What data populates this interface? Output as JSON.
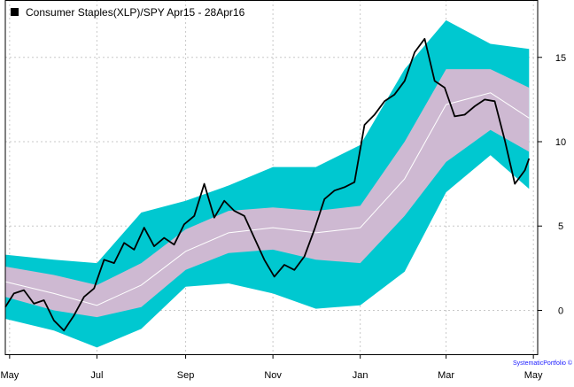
{
  "chart_data": {
    "type": "line",
    "title": "",
    "legend": {
      "label": "Consumer Staples(XLP)/SPY Apr15 - 28Apr16",
      "placement": "top-left",
      "swatch_color": "#000000"
    },
    "x_tick_labels": [
      "May",
      "Jul",
      "Sep",
      "Nov",
      "Jan",
      "Mar",
      "May"
    ],
    "y_ticks": [
      0,
      5,
      10,
      15
    ],
    "y_tick_labels": [
      "0",
      "5",
      "10",
      "15"
    ],
    "ylim": [
      -2.6,
      18.4
    ],
    "x_range": [
      "2015-04-28",
      "2016-05-04"
    ],
    "grid": true,
    "axis_side": "right",
    "colors": {
      "outer_band": "#00c8d0",
      "inner_band": "#ceb9d2",
      "mid_line": "#ffffff",
      "price_line": "#000000",
      "grid": "#c8c8c8"
    },
    "series": [
      {
        "role": "price",
        "x": [
          "2015-04-28",
          "2015-05-04",
          "2015-05-11",
          "2015-05-18",
          "2015-05-25",
          "2015-06-01",
          "2015-06-08",
          "2015-06-15",
          "2015-06-22",
          "2015-06-29",
          "2015-07-06",
          "2015-07-13",
          "2015-07-20",
          "2015-07-27",
          "2015-08-03",
          "2015-08-10",
          "2015-08-17",
          "2015-08-24",
          "2015-08-31",
          "2015-09-07",
          "2015-09-14",
          "2015-09-21",
          "2015-09-28",
          "2015-10-05",
          "2015-10-12",
          "2015-10-19",
          "2015-10-26",
          "2015-11-02",
          "2015-11-09",
          "2015-11-16",
          "2015-11-23",
          "2015-11-30",
          "2015-12-07",
          "2015-12-14",
          "2015-12-21",
          "2015-12-28",
          "2016-01-04",
          "2016-01-11",
          "2016-01-18",
          "2016-01-25",
          "2016-02-01",
          "2016-02-08",
          "2016-02-15",
          "2016-02-22",
          "2016-02-29",
          "2016-03-07",
          "2016-03-14",
          "2016-03-21",
          "2016-03-28",
          "2016-04-04",
          "2016-04-11",
          "2016-04-18",
          "2016-04-25",
          "2016-04-28"
        ],
        "values": [
          0.2,
          1.0,
          1.2,
          0.4,
          0.6,
          -0.6,
          -1.2,
          -0.3,
          0.8,
          1.3,
          3.0,
          2.8,
          4.0,
          3.6,
          4.9,
          3.8,
          4.3,
          3.9,
          5.1,
          5.6,
          7.5,
          5.5,
          6.5,
          5.9,
          5.6,
          4.3,
          3.0,
          2.0,
          2.7,
          2.4,
          3.2,
          4.8,
          6.6,
          7.1,
          7.3,
          7.6,
          11.0,
          11.6,
          12.4,
          12.8,
          13.6,
          15.3,
          16.1,
          13.6,
          13.2,
          11.5,
          11.6,
          12.1,
          12.5,
          12.4,
          10.1,
          7.5,
          8.3,
          9.0
        ]
      },
      {
        "role": "band_mid",
        "x": [
          "2015-04-28",
          "2015-06-01",
          "2015-07-01",
          "2015-08-01",
          "2015-09-01",
          "2015-10-01",
          "2015-11-01",
          "2015-12-01",
          "2016-01-01",
          "2016-02-01",
          "2016-03-01",
          "2016-04-01",
          "2016-04-28"
        ],
        "values": [
          1.7,
          1.0,
          0.3,
          1.5,
          3.5,
          4.6,
          4.9,
          4.6,
          4.9,
          7.8,
          12.2,
          12.9,
          11.4
        ]
      },
      {
        "role": "band_inner",
        "x": [
          "2015-04-28",
          "2015-06-01",
          "2015-07-01",
          "2015-08-01",
          "2015-09-01",
          "2015-10-01",
          "2015-11-01",
          "2015-12-01",
          "2016-01-01",
          "2016-02-01",
          "2016-03-01",
          "2016-04-01",
          "2016-04-28"
        ],
        "upper": [
          2.6,
          2.1,
          1.5,
          2.8,
          4.8,
          5.9,
          6.1,
          5.9,
          6.2,
          10.0,
          14.3,
          14.3,
          13.2
        ],
        "lower": [
          0.8,
          0.0,
          -0.4,
          0.2,
          2.4,
          3.4,
          3.6,
          3.0,
          2.8,
          5.6,
          8.8,
          10.7,
          9.4
        ]
      },
      {
        "role": "band_outer",
        "x": [
          "2015-04-28",
          "2015-06-01",
          "2015-07-01",
          "2015-08-01",
          "2015-09-01",
          "2015-10-01",
          "2015-11-01",
          "2015-12-01",
          "2016-01-01",
          "2016-02-01",
          "2016-03-01",
          "2016-04-01",
          "2016-04-28"
        ],
        "upper": [
          3.3,
          3.0,
          2.8,
          5.8,
          6.5,
          7.4,
          8.5,
          8.5,
          9.8,
          14.3,
          17.2,
          15.8,
          15.5
        ],
        "lower": [
          -0.5,
          -1.2,
          -2.2,
          -1.1,
          1.4,
          1.6,
          1.0,
          0.1,
          0.3,
          2.3,
          7.0,
          9.2,
          7.2
        ]
      }
    ]
  },
  "watermark": "SystematicPortfolio ©"
}
